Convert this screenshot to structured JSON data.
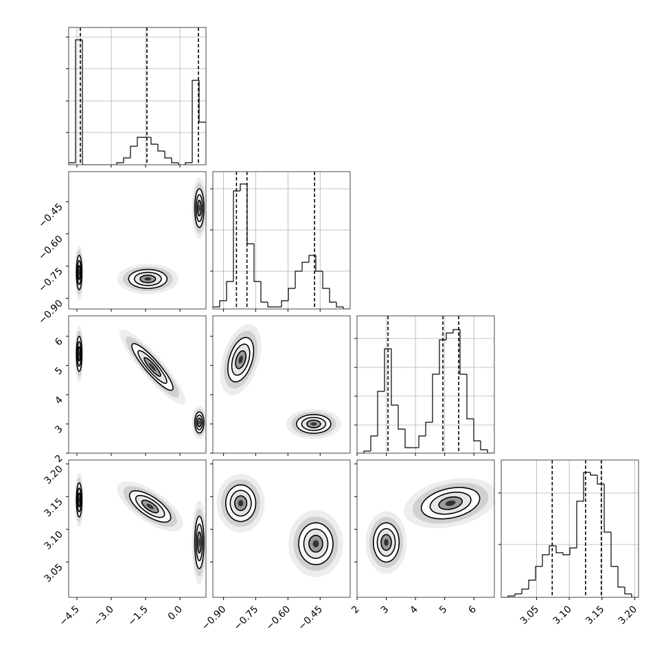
{
  "chart_data": {
    "type": "corner",
    "grid": true,
    "color": "#000000",
    "params": [
      {
        "lim": [
          -4.86,
          1.14
        ],
        "ticks": [
          {
            "value": -4.5,
            "label": "−4.5"
          },
          {
            "value": -3.0,
            "label": "−3.0"
          },
          {
            "value": -1.5,
            "label": "−1.5"
          },
          {
            "value": 0.0,
            "label": "0.0"
          }
        ],
        "hist": {
          "bins": [
            -4.86,
            -4.56,
            -4.26,
            -3.96,
            -3.66,
            -3.36,
            -3.06,
            -2.76,
            -2.46,
            -2.16,
            -1.86,
            -1.56,
            -1.26,
            -0.96,
            -0.66,
            -0.36,
            -0.06,
            0.24,
            0.54,
            0.84,
            1.14
          ],
          "counts": [
            3,
            182,
            0,
            0,
            0,
            0,
            0,
            3,
            10,
            27,
            40,
            40,
            30,
            20,
            10,
            3,
            0,
            3,
            123,
            62
          ],
          "ylim": [
            0,
            200
          ],
          "yticks": [
            47,
            93,
            140,
            186
          ],
          "quantiles": [
            -4.35,
            -1.44,
            0.81
          ]
        }
      },
      {
        "lim": [
          -0.95,
          -0.31
        ],
        "ticks": [
          {
            "value": -0.9,
            "label": "−0.90"
          },
          {
            "value": -0.75,
            "label": "−0.75"
          },
          {
            "value": -0.6,
            "label": "−0.60"
          },
          {
            "value": -0.45,
            "label": "−0.45"
          }
        ],
        "hist": {
          "bins": [
            -0.95,
            -0.918,
            -0.886,
            -0.854,
            -0.822,
            -0.79,
            -0.758,
            -0.726,
            -0.694,
            -0.662,
            -0.63,
            -0.598,
            -0.566,
            -0.534,
            -0.502,
            -0.47,
            -0.438,
            -0.406,
            -0.374,
            -0.342,
            -0.31
          ],
          "counts": [
            3,
            12,
            40,
            172,
            182,
            95,
            40,
            10,
            3,
            3,
            12,
            30,
            55,
            68,
            78,
            55,
            30,
            10,
            3,
            0
          ],
          "ylim": [
            0,
            200
          ],
          "yticks": [
            55,
            115,
            175
          ],
          "quantiles": [
            -0.84,
            -0.791,
            -0.476
          ]
        }
      },
      {
        "lim": [
          2,
          6.7
        ],
        "ticks": [
          2,
          3,
          4,
          5,
          6
        ],
        "hist": {
          "bins": [
            2,
            2.235,
            2.47,
            2.705,
            2.94,
            3.175,
            3.41,
            3.645,
            3.88,
            4.115,
            4.35,
            4.585,
            4.82,
            5.055,
            5.29,
            5.525,
            5.76,
            5.995,
            6.23,
            6.465,
            6.7
          ],
          "counts": [
            0,
            3,
            25,
            90,
            152,
            70,
            35,
            8,
            8,
            25,
            45,
            115,
            165,
            175,
            180,
            115,
            50,
            18,
            5,
            0
          ],
          "ylim": [
            0,
            200
          ],
          "yticks": [
            41,
            83,
            125,
            167
          ],
          "quantiles": [
            3.06,
            4.94,
            5.48
          ]
        }
      },
      {
        "lim": [
          2.996,
          3.206
        ],
        "ticks": [
          3.05,
          {
            "value": 3.1,
            "label": "3.10"
          },
          3.15,
          {
            "value": 3.2,
            "label": "3.20"
          }
        ],
        "hist": {
          "bins": [
            2.996,
            3.0065,
            3.017,
            3.0275,
            3.038,
            3.0485,
            3.059,
            3.0695,
            3.08,
            3.0905,
            3.101,
            3.1115,
            3.122,
            3.1325,
            3.143,
            3.1535,
            3.164,
            3.1745,
            3.185,
            3.1955,
            3.206
          ],
          "counts": [
            0,
            2,
            5,
            12,
            25,
            45,
            62,
            75,
            65,
            62,
            72,
            140,
            182,
            178,
            165,
            95,
            45,
            15,
            5,
            0
          ],
          "ylim": [
            0,
            200
          ],
          "yticks": [
            77,
            152
          ],
          "quantiles": [
            3.074,
            3.125,
            3.149
          ]
        }
      }
    ],
    "pairs": [
      [
        [
          {
            "x": -4.4,
            "y": -0.78,
            "sx": 0.06,
            "sy": 0.04,
            "rho": 0
          },
          {
            "x": -1.4,
            "y": -0.81,
            "sx": 0.42,
            "sy": 0.022,
            "rho": 0
          },
          {
            "x": 0.85,
            "y": -0.48,
            "sx": 0.1,
            "sy": 0.045,
            "rho": 0
          }
        ]
      ],
      [
        [
          {
            "x": -4.4,
            "y": 5.4,
            "sx": 0.06,
            "sy": 0.3,
            "rho": 0
          },
          {
            "x": -1.2,
            "y": 4.95,
            "sx": 0.45,
            "sy": 0.4,
            "rho": -0.9
          },
          {
            "x": 0.85,
            "y": 3.05,
            "sx": 0.1,
            "sy": 0.18,
            "rho": 0
          }
        ],
        [
          {
            "x": -0.82,
            "y": 5.2,
            "sx": 0.03,
            "sy": 0.38,
            "rho": 0.4
          },
          {
            "x": -0.48,
            "y": 3.0,
            "sx": 0.04,
            "sy": 0.16,
            "rho": 0
          }
        ]
      ],
      [
        [
          {
            "x": -4.4,
            "y": 3.145,
            "sx": 0.06,
            "sy": 0.013,
            "rho": 0
          },
          {
            "x": -1.3,
            "y": 3.135,
            "sx": 0.45,
            "sy": 0.012,
            "rho": -0.7
          },
          {
            "x": 0.85,
            "y": 3.08,
            "sx": 0.1,
            "sy": 0.02,
            "rho": 0
          }
        ],
        [
          {
            "x": -0.82,
            "y": 3.14,
            "sx": 0.035,
            "sy": 0.014,
            "rho": 0
          },
          {
            "x": -0.47,
            "y": 3.078,
            "sx": 0.04,
            "sy": 0.016,
            "rho": 0
          }
        ],
        [
          {
            "x": 3.0,
            "y": 3.08,
            "sx": 0.22,
            "sy": 0.015,
            "rho": 0
          },
          {
            "x": 5.2,
            "y": 3.14,
            "sx": 0.5,
            "sy": 0.012,
            "rho": 0.3
          }
        ]
      ]
    ]
  }
}
